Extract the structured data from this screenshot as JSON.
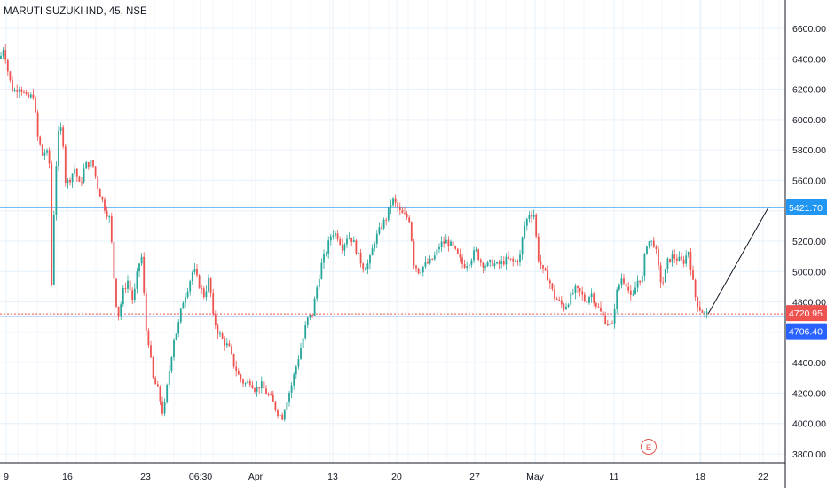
{
  "header": {
    "title": "MARUTI SUZUKI IND, 45, NSE"
  },
  "colors": {
    "up": "#26a69a",
    "down": "#ef5350",
    "grid": "#e6f0fa",
    "resistance_line": "#2196f3",
    "last_price_badge": "#ef5350",
    "support_badge": "#2962ff",
    "resistance_badge": "#2196f3",
    "axis_text": "#131722",
    "earnings_marker": "#e0544c"
  },
  "chart_data": {
    "type": "candlestick",
    "symbol": "MARUTI SUZUKI IND",
    "timeframe": "45",
    "exchange": "NSE",
    "ylim": [
      3750,
      6750
    ],
    "y_ticks": [
      "6600.00",
      "6400.00",
      "6200.00",
      "6000.00",
      "5800.00",
      "5600.00",
      "5400.00",
      "5200.00",
      "5000.00",
      "4800.00",
      "4600.00",
      "4400.00",
      "4200.00",
      "4000.00",
      "3800.00"
    ],
    "x_ticks": [
      "9",
      "16",
      "23",
      "06:30",
      "Apr",
      "13",
      "20",
      "27",
      "May",
      "11",
      "18",
      "22"
    ],
    "price_labels": {
      "resistance": "5421.70",
      "last": "4720.95",
      "support": "4706.40"
    },
    "levels": {
      "resistance": 5421.7,
      "last": 4720.95,
      "support": 4706.4
    },
    "earnings_marker": "E",
    "path_closes": [
      [
        0,
        6400
      ],
      [
        4,
        6480
      ],
      [
        6,
        6420
      ],
      [
        10,
        6280
      ],
      [
        15,
        6180
      ],
      [
        22,
        6220
      ],
      [
        30,
        6140
      ],
      [
        38,
        6160
      ],
      [
        42,
        5900
      ],
      [
        48,
        5760
      ],
      [
        52,
        5800
      ],
      [
        56,
        5700
      ],
      [
        58,
        4880
      ],
      [
        62,
        5600
      ],
      [
        66,
        5900
      ],
      [
        70,
        5960
      ],
      [
        74,
        5580
      ],
      [
        78,
        5600
      ],
      [
        84,
        5680
      ],
      [
        90,
        5560
      ],
      [
        96,
        5700
      ],
      [
        104,
        5720
      ],
      [
        110,
        5560
      ],
      [
        118,
        5420
      ],
      [
        124,
        5340
      ],
      [
        130,
        4820
      ],
      [
        134,
        4700
      ],
      [
        138,
        4860
      ],
      [
        144,
        4940
      ],
      [
        150,
        4800
      ],
      [
        156,
        5040
      ],
      [
        160,
        5100
      ],
      [
        164,
        4640
      ],
      [
        168,
        4520
      ],
      [
        172,
        4300
      ],
      [
        178,
        4220
      ],
      [
        184,
        4050
      ],
      [
        190,
        4320
      ],
      [
        196,
        4560
      ],
      [
        200,
        4620
      ],
      [
        206,
        4800
      ],
      [
        212,
        4900
      ],
      [
        218,
        5020
      ],
      [
        224,
        4920
      ],
      [
        230,
        4840
      ],
      [
        236,
        4960
      ],
      [
        240,
        4700
      ],
      [
        246,
        4600
      ],
      [
        252,
        4540
      ],
      [
        258,
        4500
      ],
      [
        264,
        4380
      ],
      [
        270,
        4300
      ],
      [
        276,
        4260
      ],
      [
        282,
        4280
      ],
      [
        288,
        4220
      ],
      [
        294,
        4260
      ],
      [
        300,
        4200
      ],
      [
        306,
        4160
      ],
      [
        312,
        4080
      ],
      [
        318,
        4040
      ],
      [
        322,
        4140
      ],
      [
        328,
        4240
      ],
      [
        334,
        4380
      ],
      [
        340,
        4520
      ],
      [
        346,
        4680
      ],
      [
        352,
        4720
      ],
      [
        356,
        4860
      ],
      [
        362,
        5040
      ],
      [
        368,
        5140
      ],
      [
        374,
        5260
      ],
      [
        380,
        5240
      ],
      [
        386,
        5160
      ],
      [
        392,
        5240
      ],
      [
        398,
        5200
      ],
      [
        404,
        5100
      ],
      [
        410,
        5020
      ],
      [
        416,
        5060
      ],
      [
        422,
        5200
      ],
      [
        430,
        5300
      ],
      [
        436,
        5360
      ],
      [
        442,
        5480
      ],
      [
        446,
        5440
      ],
      [
        452,
        5380
      ],
      [
        458,
        5360
      ],
      [
        462,
        5340
      ],
      [
        466,
        5060
      ],
      [
        472,
        5000
      ],
      [
        478,
        5040
      ],
      [
        484,
        5060
      ],
      [
        490,
        5100
      ],
      [
        496,
        5180
      ],
      [
        504,
        5200
      ],
      [
        510,
        5160
      ],
      [
        516,
        5100
      ],
      [
        522,
        5040
      ],
      [
        528,
        5060
      ],
      [
        536,
        5140
      ],
      [
        542,
        5060
      ],
      [
        548,
        5040
      ],
      [
        554,
        5060
      ],
      [
        560,
        5040
      ],
      [
        566,
        5060
      ],
      [
        572,
        5080
      ],
      [
        580,
        5060
      ],
      [
        586,
        5100
      ],
      [
        590,
        5280
      ],
      [
        596,
        5380
      ],
      [
        602,
        5380
      ],
      [
        606,
        5100
      ],
      [
        612,
        5000
      ],
      [
        618,
        4960
      ],
      [
        624,
        4840
      ],
      [
        630,
        4800
      ],
      [
        636,
        4760
      ],
      [
        642,
        4820
      ],
      [
        648,
        4880
      ],
      [
        654,
        4860
      ],
      [
        660,
        4800
      ],
      [
        666,
        4860
      ],
      [
        672,
        4780
      ],
      [
        678,
        4720
      ],
      [
        684,
        4660
      ],
      [
        690,
        4640
      ],
      [
        694,
        4840
      ],
      [
        700,
        4960
      ],
      [
        706,
        4920
      ],
      [
        712,
        4800
      ],
      [
        718,
        4940
      ],
      [
        724,
        4960
      ],
      [
        728,
        5180
      ],
      [
        732,
        5200
      ],
      [
        738,
        5180
      ],
      [
        742,
        5020
      ],
      [
        746,
        4900
      ],
      [
        752,
        5060
      ],
      [
        758,
        5100
      ],
      [
        764,
        5080
      ],
      [
        770,
        5060
      ],
      [
        776,
        5140
      ],
      [
        780,
        4960
      ],
      [
        784,
        4820
      ],
      [
        788,
        4760
      ],
      [
        794,
        4720
      ],
      [
        798,
        4720
      ]
    ]
  }
}
